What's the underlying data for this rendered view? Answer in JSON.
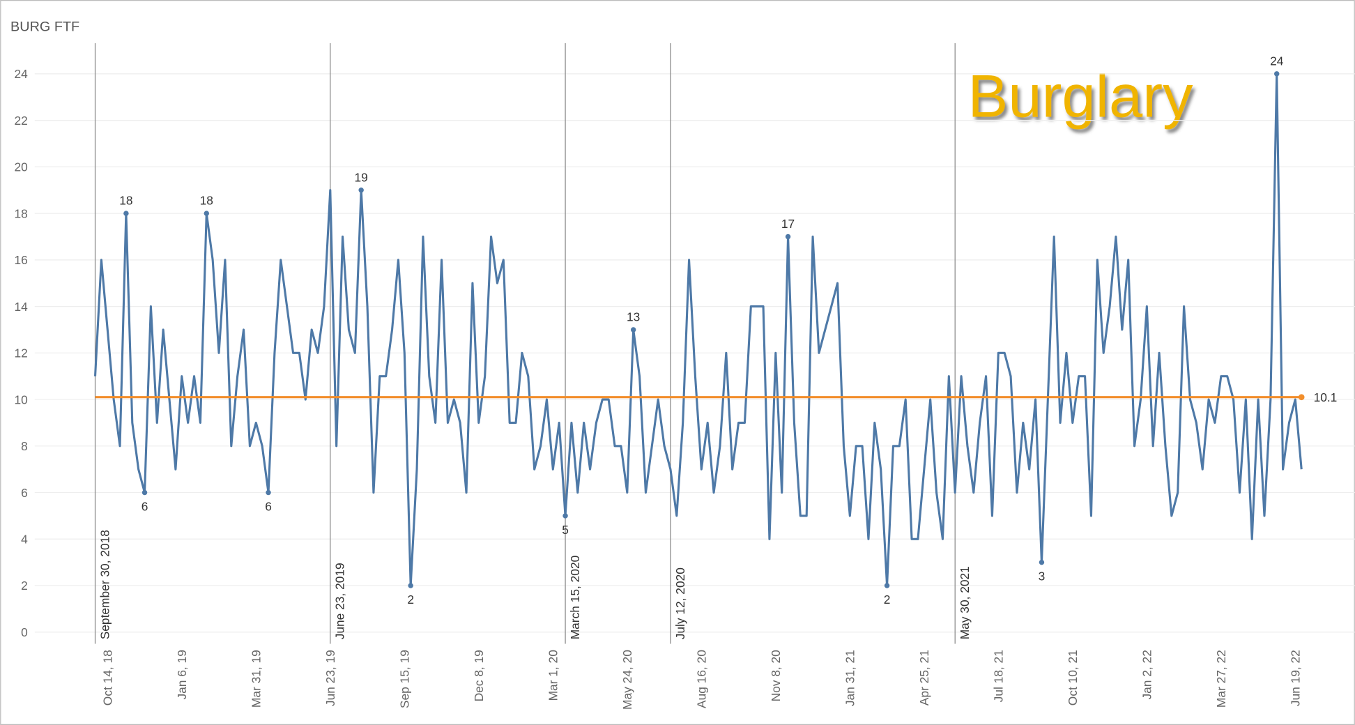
{
  "chart_data": {
    "type": "line",
    "title": "BURG FTF",
    "annotation": "Burglary",
    "categories": [
      null,
      null,
      "Oct 14, 18",
      null,
      null,
      null,
      null,
      null,
      null,
      null,
      null,
      null,
      null,
      null,
      "Jan 6, 19",
      null,
      null,
      null,
      null,
      null,
      null,
      null,
      null,
      null,
      null,
      null,
      "Mar 31, 19",
      null,
      null,
      null,
      null,
      null,
      null,
      null,
      null,
      null,
      null,
      null,
      "Jun 23, 19",
      null,
      null,
      null,
      null,
      null,
      null,
      null,
      null,
      null,
      null,
      null,
      "Sep 15, 19",
      null,
      null,
      null,
      null,
      null,
      null,
      null,
      null,
      null,
      null,
      null,
      "Dec 8, 19",
      null,
      null,
      null,
      null,
      null,
      null,
      null,
      null,
      null,
      null,
      null,
      "Mar 1, 20",
      null,
      null,
      null,
      null,
      null,
      null,
      null,
      null,
      null,
      null,
      null,
      "May 24, 20",
      null,
      null,
      null,
      null,
      null,
      null,
      null,
      null,
      null,
      null,
      null,
      "Aug 16, 20",
      null,
      null,
      null,
      null,
      null,
      null,
      null,
      null,
      null,
      null,
      null,
      "Nov 8, 20",
      null,
      null,
      null,
      null,
      null,
      null,
      null,
      null,
      null,
      null,
      null,
      "Jan 31, 21",
      null,
      null,
      null,
      null,
      null,
      null,
      null,
      null,
      null,
      null,
      null,
      "Apr 25, 21",
      null,
      null,
      null,
      null,
      null,
      null,
      null,
      null,
      null,
      null,
      null,
      "Jul 18, 21",
      null,
      null,
      null,
      null,
      null,
      null,
      null,
      null,
      null,
      null,
      null,
      "Oct 10, 21",
      null,
      null,
      null,
      null,
      null,
      null,
      null,
      null,
      null,
      null,
      null,
      "Jan 2, 22",
      null,
      null,
      null,
      null,
      null,
      null,
      null,
      null,
      null,
      null,
      null,
      "Mar 27, 22",
      null,
      null,
      null,
      null,
      null,
      null,
      null,
      null,
      null,
      null,
      null,
      "Jun 19, 22",
      null
    ],
    "values": [
      11,
      16,
      13,
      10,
      8,
      18,
      9,
      7,
      6,
      14,
      9,
      13,
      10,
      7,
      11,
      9,
      11,
      9,
      18,
      16,
      12,
      16,
      8,
      11,
      13,
      8,
      9,
      8,
      6,
      12,
      16,
      14,
      12,
      12,
      10,
      13,
      12,
      14,
      19,
      8,
      17,
      13,
      12,
      19,
      14,
      6,
      11,
      11,
      13,
      16,
      12,
      2,
      7,
      17,
      11,
      9,
      16,
      9,
      10,
      9,
      6,
      15,
      9,
      11,
      17,
      15,
      16,
      9,
      9,
      12,
      11,
      7,
      8,
      10,
      7,
      9,
      5,
      9,
      6,
      9,
      7,
      9,
      10,
      10,
      8,
      8,
      6,
      13,
      11,
      6,
      8,
      10,
      8,
      7,
      5,
      9,
      16,
      11,
      7,
      9,
      6,
      8,
      12,
      7,
      9,
      9,
      14,
      14,
      14,
      4,
      12,
      6,
      17,
      9,
      5,
      5,
      17,
      12,
      13,
      14,
      15,
      8,
      5,
      8,
      8,
      4,
      9,
      7,
      2,
      8,
      8,
      10,
      4,
      4,
      7,
      10,
      6,
      4,
      11,
      6,
      11,
      8,
      6,
      9,
      11,
      5,
      12,
      12,
      11,
      6,
      9,
      7,
      10,
      3,
      10,
      17,
      9,
      12,
      9,
      11,
      11,
      5,
      16,
      12,
      14,
      17,
      13,
      16,
      8,
      10,
      14,
      8,
      12,
      8,
      5,
      6,
      14,
      10,
      9,
      7,
      10,
      9,
      11,
      11,
      10,
      6,
      10,
      4,
      10,
      5,
      10,
      24,
      7,
      9,
      10,
      7
    ],
    "color": "#4e79a7",
    "labeled_points": [
      5,
      8,
      18,
      28,
      43,
      51,
      76,
      87,
      112,
      128,
      153,
      191
    ],
    "reference_lines": [
      {
        "label": "September 30, 2018",
        "at": 0
      },
      {
        "label": "June 23, 2019",
        "at": 38
      },
      {
        "label": "March 15, 2020",
        "at": 76
      },
      {
        "label": "July 12, 2020",
        "at": 93
      },
      {
        "label": "May 30, 2021",
        "at": 139
      }
    ],
    "average": {
      "value": 10.1,
      "color": "#f28e2b"
    },
    "ylim": [
      -0.5,
      25.5
    ],
    "yticks": [
      0,
      2,
      4,
      6,
      8,
      10,
      12,
      14,
      16,
      18,
      20,
      22,
      24
    ],
    "grid": true
  }
}
